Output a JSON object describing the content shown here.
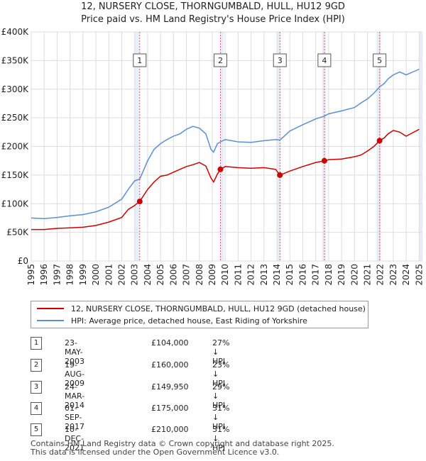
{
  "title_line1": "12, NURSERY CLOSE, THORNGUMBALD, HULL, HU12 9GD",
  "title_line2": "Price paid vs. HM Land Registry's House Price Index (HPI)",
  "legend": {
    "property": "12, NURSERY CLOSE, THORNGUMBALD, HULL, HU12 9GD (detached house)",
    "hpi": "HPI: Average price, detached house, East Riding of Yorkshire"
  },
  "colors": {
    "property": "#cc0000",
    "hpi": "#5b8fd1",
    "shade": "#e8eef8",
    "vline": "#e06060"
  },
  "transactions": [
    {
      "num": "1",
      "date": "23-MAY-2003",
      "price": "£104,000",
      "hpi": "27% ↓ HPI"
    },
    {
      "num": "2",
      "date": "19-AUG-2009",
      "price": "£160,000",
      "hpi": "23% ↓ HPI"
    },
    {
      "num": "3",
      "date": "24-MAR-2014",
      "price": "£149,950",
      "hpi": "29% ↓ HPI"
    },
    {
      "num": "4",
      "date": "01-SEP-2017",
      "price": "£175,000",
      "hpi": "31% ↓ HPI"
    },
    {
      "num": "5",
      "date": "10-DEC-2021",
      "price": "£210,000",
      "hpi": "31% ↓ HPI"
    }
  ],
  "footer": {
    "line1": "Contains HM Land Registry data © Crown copyright and database right 2025.",
    "line2": "This data is licensed under the Open Government Licence v3.0."
  },
  "chart_data": {
    "type": "line",
    "xlim": [
      1995,
      2025.2
    ],
    "ylim": [
      0,
      400000
    ],
    "yticks": [
      {
        "v": 0,
        "label": "£0"
      },
      {
        "v": 50000,
        "label": "£50K"
      },
      {
        "v": 100000,
        "label": "£100K"
      },
      {
        "v": 150000,
        "label": "£150K"
      },
      {
        "v": 200000,
        "label": "£200K"
      },
      {
        "v": 250000,
        "label": "£250K"
      },
      {
        "v": 300000,
        "label": "£300K"
      },
      {
        "v": 350000,
        "label": "£350K"
      },
      {
        "v": 400000,
        "label": "£400K"
      }
    ],
    "xticks": [
      "1995",
      "1996",
      "1997",
      "1998",
      "1999",
      "2000",
      "2001",
      "2002",
      "2003",
      "2004",
      "2005",
      "2006",
      "2007",
      "2008",
      "2009",
      "2010",
      "2011",
      "2012",
      "2013",
      "2014",
      "2015",
      "2016",
      "2017",
      "2018",
      "2019",
      "2020",
      "2021",
      "2022",
      "2023",
      "2024",
      "2025"
    ],
    "grid": true,
    "shaded_regions": [
      [
        2003.0,
        2003.4
      ],
      [
        2009.6,
        2009.9
      ],
      [
        2014.0,
        2014.3
      ],
      [
        2017.5,
        2017.8
      ],
      [
        2021.7,
        2022.0
      ],
      [
        2025.0,
        2025.2
      ]
    ],
    "series": [
      {
        "name": "12, NURSERY CLOSE, THORNGUMBALD, HULL, HU12 9GD (detached house)",
        "x": [
          1995,
          1996,
          1997,
          1998,
          1999,
          2000,
          2001,
          2002,
          2002.5,
          2003,
          2003.39,
          2004,
          2004.5,
          2005,
          2005.5,
          2006,
          2006.5,
          2007,
          2007.5,
          2008,
          2008.5,
          2008.9,
          2009.1,
          2009.4,
          2009.63,
          2010,
          2011,
          2012,
          2013,
          2013.9,
          2014.23,
          2015,
          2016,
          2017,
          2017.67,
          2018,
          2019,
          2020,
          2020.5,
          2021,
          2021.5,
          2021.94,
          2022.3,
          2022.6,
          2023,
          2023.5,
          2024,
          2024.5,
          2025
        ],
        "y": [
          55000,
          55000,
          57000,
          58000,
          59000,
          62000,
          68000,
          76000,
          90000,
          97000,
          104000,
          125000,
          138000,
          148000,
          150000,
          155000,
          160000,
          165000,
          168000,
          172000,
          166000,
          145000,
          138000,
          152000,
          160000,
          165000,
          163000,
          162000,
          163000,
          160000,
          149950,
          157000,
          165000,
          172000,
          175000,
          177000,
          178000,
          182000,
          185000,
          192000,
          200000,
          210000,
          215000,
          222000,
          228000,
          225000,
          218000,
          224000,
          230000
        ]
      },
      {
        "name": "HPI: Average price, detached house, East Riding of Yorkshire",
        "x": [
          1995,
          1996,
          1997,
          1998,
          1999,
          2000,
          2001,
          2002,
          2002.5,
          2003,
          2003.39,
          2004,
          2004.5,
          2005,
          2005.5,
          2006,
          2006.5,
          2007,
          2007.5,
          2008,
          2008.5,
          2008.9,
          2009.1,
          2009.4,
          2009.63,
          2010,
          2011,
          2012,
          2013,
          2013.9,
          2014.23,
          2015,
          2016,
          2017,
          2017.67,
          2018,
          2019,
          2020,
          2020.5,
          2021,
          2021.5,
          2021.94,
          2022.3,
          2022.6,
          2023,
          2023.5,
          2024,
          2024.5,
          2025
        ],
        "y": [
          75000,
          74000,
          76000,
          79000,
          81000,
          86000,
          94000,
          108000,
          125000,
          140000,
          143000,
          175000,
          195000,
          205000,
          212000,
          218000,
          222000,
          230000,
          235000,
          232000,
          222000,
          195000,
          190000,
          205000,
          208000,
          212000,
          208000,
          207000,
          210000,
          212000,
          211000,
          227000,
          238000,
          248000,
          253000,
          257000,
          262000,
          268000,
          276000,
          283000,
          293000,
          304000,
          310000,
          318000,
          325000,
          330000,
          325000,
          330000,
          335000
        ]
      }
    ],
    "sale_points": [
      {
        "label": "1",
        "x": 2003.39,
        "y": 104000
      },
      {
        "label": "2",
        "x": 2009.63,
        "y": 160000
      },
      {
        "label": "3",
        "x": 2014.23,
        "y": 149950
      },
      {
        "label": "4",
        "x": 2017.67,
        "y": 175000
      },
      {
        "label": "5",
        "x": 2021.94,
        "y": 210000
      }
    ]
  }
}
